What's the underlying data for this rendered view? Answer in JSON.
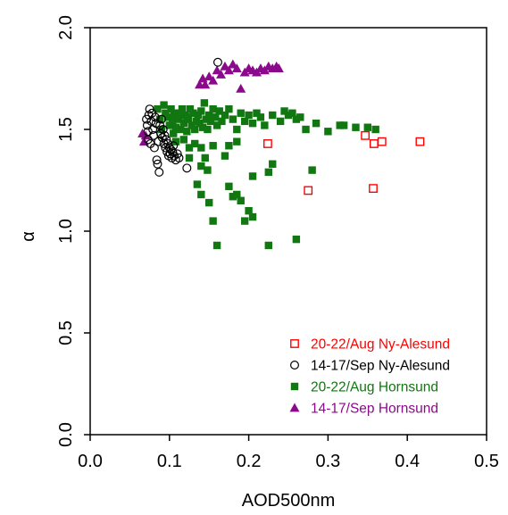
{
  "chart_data": {
    "type": "scatter",
    "xlabel": "AOD500nm",
    "ylabel": "α",
    "xlim": [
      0.0,
      0.5
    ],
    "ylim": [
      0.0,
      2.0
    ],
    "x_ticks": [
      "0.0",
      "0.1",
      "0.2",
      "0.3",
      "0.4",
      "0.5"
    ],
    "y_ticks": [
      "0.0",
      "0.5",
      "1.0",
      "1.5",
      "2.0"
    ],
    "grid": false,
    "legend_position": "bottom-right",
    "series": [
      {
        "name": "20-22/Aug Ny-Alesund",
        "color": "#ff0000",
        "marker": "open-square",
        "points": [
          [
            0.224,
            1.43
          ],
          [
            0.275,
            1.2
          ],
          [
            0.347,
            1.47
          ],
          [
            0.357,
            1.21
          ],
          [
            0.358,
            1.43
          ],
          [
            0.368,
            1.44
          ],
          [
            0.416,
            1.44
          ]
        ]
      },
      {
        "name": "14-17/Sep Ny-Alesund",
        "color": "#000000",
        "marker": "open-circle",
        "points": [
          [
            0.071,
            1.55
          ],
          [
            0.072,
            1.52
          ],
          [
            0.073,
            1.49
          ],
          [
            0.073,
            1.45
          ],
          [
            0.074,
            1.57
          ],
          [
            0.075,
            1.6
          ],
          [
            0.076,
            1.43
          ],
          [
            0.077,
            1.54
          ],
          [
            0.078,
            1.58
          ],
          [
            0.079,
            1.5
          ],
          [
            0.08,
            1.47
          ],
          [
            0.081,
            1.41
          ],
          [
            0.082,
            1.56
          ],
          [
            0.083,
            1.53
          ],
          [
            0.084,
            1.35
          ],
          [
            0.085,
            1.33
          ],
          [
            0.086,
            1.44
          ],
          [
            0.087,
            1.29
          ],
          [
            0.088,
            1.52
          ],
          [
            0.089,
            1.48
          ],
          [
            0.09,
            1.55
          ],
          [
            0.091,
            1.46
          ],
          [
            0.092,
            1.5
          ],
          [
            0.093,
            1.43
          ],
          [
            0.094,
            1.47
          ],
          [
            0.095,
            1.41
          ],
          [
            0.096,
            1.45
          ],
          [
            0.097,
            1.39
          ],
          [
            0.098,
            1.43
          ],
          [
            0.099,
            1.37
          ],
          [
            0.1,
            1.41
          ],
          [
            0.101,
            1.38
          ],
          [
            0.102,
            1.4
          ],
          [
            0.103,
            1.36
          ],
          [
            0.104,
            1.39
          ],
          [
            0.105,
            1.42
          ],
          [
            0.106,
            1.37
          ],
          [
            0.108,
            1.35
          ],
          [
            0.11,
            1.38
          ],
          [
            0.112,
            1.36
          ],
          [
            0.122,
            1.31
          ],
          [
            0.161,
            1.83
          ]
        ]
      },
      {
        "name": "20-22/Aug Hornsund",
        "color": "#117711",
        "marker": "filled-square",
        "points": [
          [
            0.085,
            1.6
          ],
          [
            0.088,
            1.55
          ],
          [
            0.09,
            1.5
          ],
          [
            0.093,
            1.62
          ],
          [
            0.095,
            1.58
          ],
          [
            0.098,
            1.56
          ],
          [
            0.1,
            1.52
          ],
          [
            0.102,
            1.6
          ],
          [
            0.104,
            1.54
          ],
          [
            0.106,
            1.57
          ],
          [
            0.108,
            1.51
          ],
          [
            0.11,
            1.58
          ],
          [
            0.112,
            1.55
          ],
          [
            0.114,
            1.5
          ],
          [
            0.116,
            1.6
          ],
          [
            0.118,
            1.53
          ],
          [
            0.12,
            1.57
          ],
          [
            0.122,
            1.49
          ],
          [
            0.124,
            1.55
          ],
          [
            0.126,
            1.6
          ],
          [
            0.128,
            1.52
          ],
          [
            0.13,
            1.58
          ],
          [
            0.132,
            1.5
          ],
          [
            0.134,
            1.54
          ],
          [
            0.136,
            1.57
          ],
          [
            0.138,
            1.53
          ],
          [
            0.14,
            1.59
          ],
          [
            0.142,
            1.51
          ],
          [
            0.144,
            1.63
          ],
          [
            0.146,
            1.55
          ],
          [
            0.148,
            1.5
          ],
          [
            0.15,
            1.57
          ],
          [
            0.152,
            1.54
          ],
          [
            0.155,
            1.6
          ],
          [
            0.158,
            1.56
          ],
          [
            0.16,
            1.52
          ],
          [
            0.163,
            1.59
          ],
          [
            0.166,
            1.54
          ],
          [
            0.17,
            1.57
          ],
          [
            0.175,
            1.6
          ],
          [
            0.18,
            1.55
          ],
          [
            0.185,
            1.5
          ],
          [
            0.19,
            1.58
          ],
          [
            0.195,
            1.54
          ],
          [
            0.2,
            1.57
          ],
          [
            0.205,
            1.53
          ],
          [
            0.21,
            1.58
          ],
          [
            0.215,
            1.56
          ],
          [
            0.22,
            1.52
          ],
          [
            0.23,
            1.57
          ],
          [
            0.24,
            1.54
          ],
          [
            0.245,
            1.59
          ],
          [
            0.25,
            1.57
          ],
          [
            0.255,
            1.58
          ],
          [
            0.26,
            1.55
          ],
          [
            0.265,
            1.56
          ],
          [
            0.272,
            1.5
          ],
          [
            0.285,
            1.53
          ],
          [
            0.3,
            1.49
          ],
          [
            0.315,
            1.52
          ],
          [
            0.32,
            1.52
          ],
          [
            0.335,
            1.51
          ],
          [
            0.35,
            1.51
          ],
          [
            0.36,
            1.5
          ],
          [
            0.105,
            1.48
          ],
          [
            0.108,
            1.44
          ],
          [
            0.118,
            1.45
          ],
          [
            0.125,
            1.41
          ],
          [
            0.132,
            1.43
          ],
          [
            0.14,
            1.41
          ],
          [
            0.155,
            1.42
          ],
          [
            0.175,
            1.42
          ],
          [
            0.185,
            1.44
          ],
          [
            0.125,
            1.36
          ],
          [
            0.145,
            1.36
          ],
          [
            0.14,
            1.32
          ],
          [
            0.17,
            1.37
          ],
          [
            0.135,
            1.23
          ],
          [
            0.14,
            1.18
          ],
          [
            0.15,
            1.14
          ],
          [
            0.175,
            1.22
          ],
          [
            0.18,
            1.17
          ],
          [
            0.185,
            1.18
          ],
          [
            0.19,
            1.15
          ],
          [
            0.2,
            1.1
          ],
          [
            0.205,
            1.07
          ],
          [
            0.195,
            1.05
          ],
          [
            0.155,
            1.05
          ],
          [
            0.16,
            0.93
          ],
          [
            0.205,
            1.27
          ],
          [
            0.225,
            1.29
          ],
          [
            0.23,
            1.33
          ],
          [
            0.225,
            0.93
          ],
          [
            0.26,
            0.96
          ],
          [
            0.28,
            1.3
          ],
          [
            0.148,
            1.3
          ],
          [
            0.113,
            1.58
          ],
          [
            0.122,
            1.56
          ]
        ]
      },
      {
        "name": "14-17/Sep Hornsund",
        "color": "#8b0a8b",
        "marker": "filled-triangle",
        "points": [
          [
            0.066,
            1.48
          ],
          [
            0.068,
            1.44
          ],
          [
            0.07,
            1.47
          ],
          [
            0.138,
            1.72
          ],
          [
            0.142,
            1.75
          ],
          [
            0.145,
            1.72
          ],
          [
            0.15,
            1.76
          ],
          [
            0.155,
            1.74
          ],
          [
            0.16,
            1.79
          ],
          [
            0.165,
            1.77
          ],
          [
            0.17,
            1.81
          ],
          [
            0.175,
            1.79
          ],
          [
            0.18,
            1.82
          ],
          [
            0.185,
            1.8
          ],
          [
            0.19,
            1.7
          ],
          [
            0.195,
            1.78
          ],
          [
            0.2,
            1.8
          ],
          [
            0.205,
            1.79
          ],
          [
            0.21,
            1.78
          ],
          [
            0.215,
            1.8
          ],
          [
            0.22,
            1.79
          ],
          [
            0.225,
            1.81
          ],
          [
            0.23,
            1.8
          ],
          [
            0.235,
            1.81
          ],
          [
            0.238,
            1.8
          ]
        ]
      }
    ]
  }
}
